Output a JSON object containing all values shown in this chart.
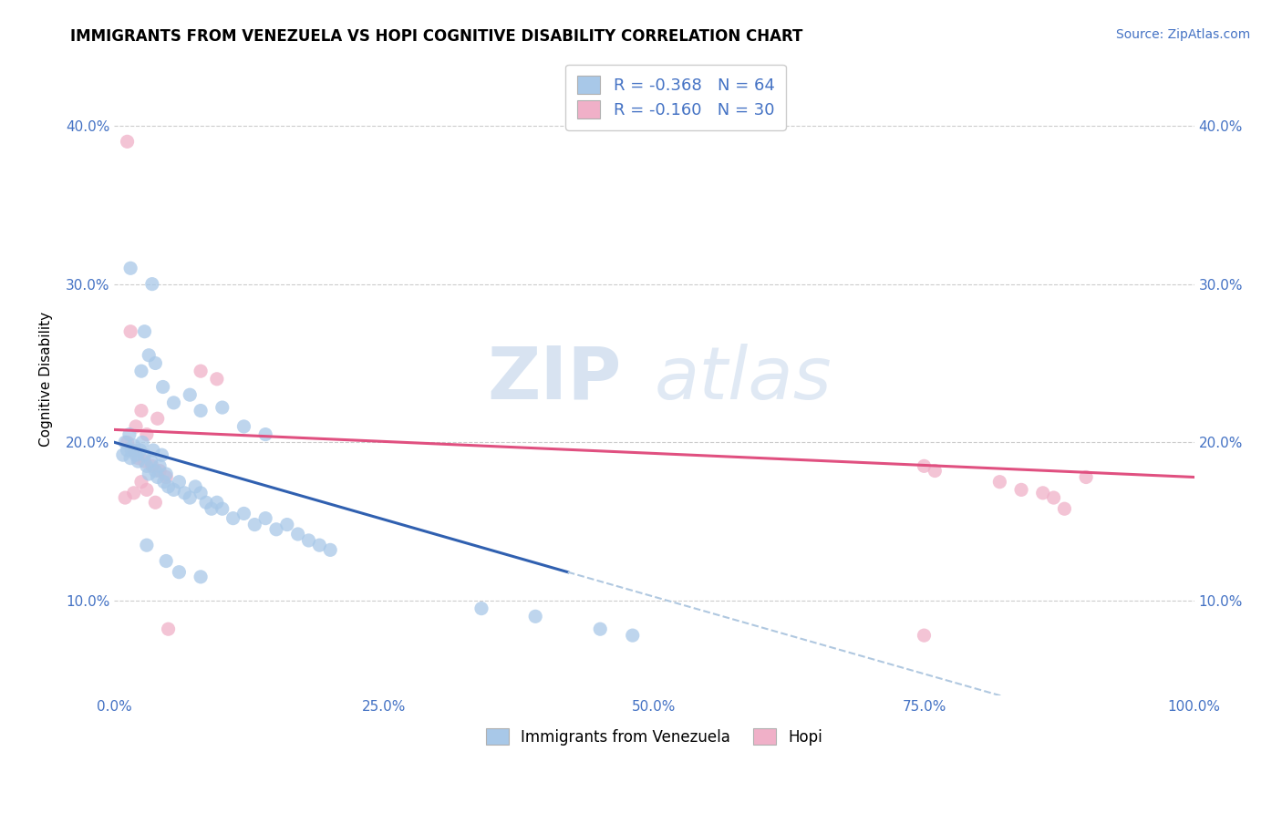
{
  "title": "IMMIGRANTS FROM VENEZUELA VS HOPI COGNITIVE DISABILITY CORRELATION CHART",
  "source": "Source: ZipAtlas.com",
  "ylabel": "Cognitive Disability",
  "xlabel": "",
  "xlim": [
    0.0,
    1.0
  ],
  "ylim": [
    0.04,
    0.44
  ],
  "yticks": [
    0.1,
    0.2,
    0.3,
    0.4
  ],
  "ytick_labels": [
    "10.0%",
    "20.0%",
    "30.0%",
    "40.0%"
  ],
  "xticks": [
    0.0,
    0.25,
    0.5,
    0.75,
    1.0
  ],
  "xtick_labels": [
    "0.0%",
    "25.0%",
    "50.0%",
    "75.0%",
    "100.0%"
  ],
  "legend_bottom": [
    "Immigrants from Venezuela",
    "Hopi"
  ],
  "legend_top_blue_r": "-0.368",
  "legend_top_blue_n": "64",
  "legend_top_pink_r": "-0.160",
  "legend_top_pink_n": "30",
  "watermark_part1": "ZIP",
  "watermark_part2": "atlas",
  "blue_color": "#a8c8e8",
  "pink_color": "#f0b0c8",
  "blue_line_color": "#3060b0",
  "pink_line_color": "#e05080",
  "dashed_line_color": "#b0c8e0",
  "blue_scatter": [
    [
      0.008,
      0.192
    ],
    [
      0.01,
      0.2
    ],
    [
      0.012,
      0.195
    ],
    [
      0.014,
      0.205
    ],
    [
      0.015,
      0.19
    ],
    [
      0.016,
      0.195
    ],
    [
      0.018,
      0.198
    ],
    [
      0.02,
      0.192
    ],
    [
      0.022,
      0.188
    ],
    [
      0.024,
      0.195
    ],
    [
      0.026,
      0.2
    ],
    [
      0.028,
      0.192
    ],
    [
      0.03,
      0.185
    ],
    [
      0.032,
      0.18
    ],
    [
      0.034,
      0.188
    ],
    [
      0.036,
      0.195
    ],
    [
      0.038,
      0.182
    ],
    [
      0.04,
      0.178
    ],
    [
      0.042,
      0.185
    ],
    [
      0.044,
      0.192
    ],
    [
      0.046,
      0.175
    ],
    [
      0.048,
      0.18
    ],
    [
      0.05,
      0.172
    ],
    [
      0.055,
      0.17
    ],
    [
      0.06,
      0.175
    ],
    [
      0.065,
      0.168
    ],
    [
      0.07,
      0.165
    ],
    [
      0.075,
      0.172
    ],
    [
      0.08,
      0.168
    ],
    [
      0.085,
      0.162
    ],
    [
      0.09,
      0.158
    ],
    [
      0.095,
      0.162
    ],
    [
      0.1,
      0.158
    ],
    [
      0.11,
      0.152
    ],
    [
      0.12,
      0.155
    ],
    [
      0.13,
      0.148
    ],
    [
      0.14,
      0.152
    ],
    [
      0.15,
      0.145
    ],
    [
      0.16,
      0.148
    ],
    [
      0.17,
      0.142
    ],
    [
      0.18,
      0.138
    ],
    [
      0.19,
      0.135
    ],
    [
      0.2,
      0.132
    ],
    [
      0.025,
      0.245
    ],
    [
      0.032,
      0.255
    ],
    [
      0.038,
      0.25
    ],
    [
      0.028,
      0.27
    ],
    [
      0.045,
      0.235
    ],
    [
      0.055,
      0.225
    ],
    [
      0.07,
      0.23
    ],
    [
      0.08,
      0.22
    ],
    [
      0.1,
      0.222
    ],
    [
      0.12,
      0.21
    ],
    [
      0.14,
      0.205
    ],
    [
      0.015,
      0.31
    ],
    [
      0.035,
      0.3
    ],
    [
      0.03,
      0.135
    ],
    [
      0.048,
      0.125
    ],
    [
      0.06,
      0.118
    ],
    [
      0.08,
      0.115
    ],
    [
      0.34,
      0.095
    ],
    [
      0.39,
      0.09
    ],
    [
      0.45,
      0.082
    ],
    [
      0.48,
      0.078
    ]
  ],
  "pink_scatter": [
    [
      0.012,
      0.39
    ],
    [
      0.015,
      0.27
    ],
    [
      0.08,
      0.245
    ],
    [
      0.095,
      0.24
    ],
    [
      0.025,
      0.22
    ],
    [
      0.04,
      0.215
    ],
    [
      0.02,
      0.21
    ],
    [
      0.03,
      0.205
    ],
    [
      0.012,
      0.2
    ],
    [
      0.018,
      0.195
    ],
    [
      0.022,
      0.19
    ],
    [
      0.028,
      0.188
    ],
    [
      0.035,
      0.185
    ],
    [
      0.042,
      0.182
    ],
    [
      0.048,
      0.178
    ],
    [
      0.025,
      0.175
    ],
    [
      0.03,
      0.17
    ],
    [
      0.018,
      0.168
    ],
    [
      0.01,
      0.165
    ],
    [
      0.038,
      0.162
    ],
    [
      0.75,
      0.185
    ],
    [
      0.76,
      0.182
    ],
    [
      0.82,
      0.175
    ],
    [
      0.84,
      0.17
    ],
    [
      0.86,
      0.168
    ],
    [
      0.87,
      0.165
    ],
    [
      0.9,
      0.178
    ],
    [
      0.88,
      0.158
    ],
    [
      0.05,
      0.082
    ],
    [
      0.75,
      0.078
    ]
  ],
  "blue_trendline_solid": [
    [
      0.0,
      0.2
    ],
    [
      0.42,
      0.118
    ]
  ],
  "blue_trendline_dashed": [
    [
      0.42,
      0.118
    ],
    [
      1.0,
      0.005
    ]
  ],
  "pink_trendline": [
    [
      0.0,
      0.208
    ],
    [
      1.0,
      0.178
    ]
  ]
}
